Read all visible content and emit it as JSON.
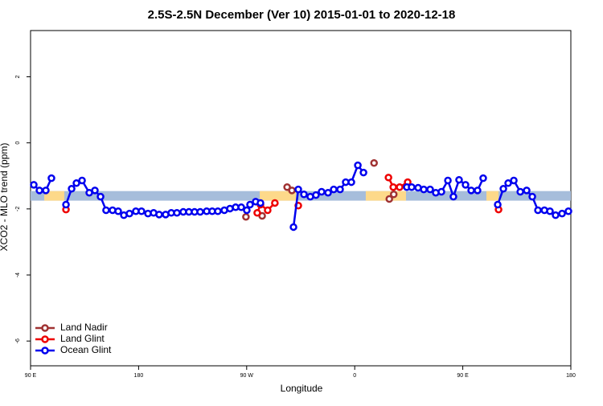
{
  "chart_data": {
    "type": "line",
    "title": "2.5S-2.5N December (Ver 10)   2015-01-01 to 2020-12-18",
    "xlabel": "Longitude",
    "ylabel": "XCO2 - MLO trend (ppm)",
    "xlim": [
      90,
      540
    ],
    "ylim": [
      -6.75,
      3.4
    ],
    "xticks": [
      {
        "value": 90,
        "label": "90 E"
      },
      {
        "value": 180,
        "label": "180"
      },
      {
        "value": 270,
        "label": "90 W"
      },
      {
        "value": 360,
        "label": "0"
      },
      {
        "value": 450,
        "label": "90 E"
      },
      {
        "value": 540,
        "label": "180"
      }
    ],
    "yticks": [
      -6,
      -4,
      -2,
      0,
      2
    ],
    "band": {
      "range": [
        -1.75,
        -1.46
      ],
      "color": "#a6bddb",
      "land_color": "#fdd98a",
      "land": [
        [
          101.4,
          118.1
        ],
        [
          280.9,
          311
        ],
        [
          369.2,
          402.7
        ],
        [
          469.7,
          479.8
        ]
      ]
    },
    "legend": "bottom-left",
    "series": [
      {
        "name": "Land Nadir",
        "color": "#a03232",
        "x": [
          269.4,
          null,
          282.9,
          null,
          303.7,
          307.7,
          null,
          376.1,
          null,
          388.8,
          392.5
        ],
        "values": [
          -2.24,
          null,
          -2.21,
          null,
          -1.34,
          -1.44,
          null,
          -0.61,
          null,
          -1.7,
          -1.56
        ]
      },
      {
        "name": "Land Glint",
        "color": "#ee0000",
        "x": [
          119.5,
          null,
          278.8,
          281.5,
          287.5,
          293.5,
          null,
          313,
          null,
          388.1,
          392.1,
          397.4,
          404.1,
          null,
          479.8
        ],
        "values": [
          -2.02,
          null,
          -2.12,
          -1.87,
          -2.04,
          -1.82,
          null,
          -1.9,
          null,
          -1.05,
          -1.34,
          -1.34,
          -1.19,
          null,
          -2.02
        ]
      },
      {
        "name": "Ocean Glint",
        "color": "#0000ee",
        "x": [
          92.7,
          97.4,
          102.7,
          107.4,
          null,
          119.5,
          124.2,
          128.2,
          132.9,
          138.9,
          143.6,
          148.3,
          152.9,
          158.3,
          163,
          167.7,
          172.4,
          177.7,
          182.4,
          187.8,
          192.5,
          197.1,
          202.5,
          207.2,
          211.9,
          217.2,
          221.9,
          226.6,
          231.3,
          236.7,
          241.3,
          246,
          251.4,
          256.1,
          260.8,
          265.5,
          270.1,
          272.8,
          277.5,
          281.5,
          null,
          309,
          313,
          317.7,
          323,
          327.7,
          332.4,
          337.8,
          342.5,
          347.8,
          352.5,
          357.2,
          362.6,
          367.3,
          null,
          403.4,
          407.4,
          412.8,
          417.5,
          422.8,
          427.5,
          432.2,
          437.6,
          442.2,
          446.9,
          452.3,
          457,
          462.3,
          467,
          null,
          479.1,
          483.8,
          487.8,
          492.5,
          497.9,
          503.2,
          507.9,
          512.6,
          518,
          522.6,
          527.3,
          532.7,
          538
        ],
        "values": [
          -1.27,
          -1.44,
          -1.44,
          -1.07,
          null,
          -1.87,
          -1.39,
          -1.22,
          -1.14,
          -1.51,
          -1.44,
          -1.63,
          -2.04,
          -2.04,
          -2.07,
          -2.19,
          -2.14,
          -2.07,
          -2.07,
          -2.14,
          -2.12,
          -2.17,
          -2.17,
          -2.12,
          -2.12,
          -2.09,
          -2.09,
          -2.09,
          -2.09,
          -2.07,
          -2.07,
          -2.07,
          -2.04,
          -1.99,
          -1.95,
          -1.95,
          -2.04,
          -1.87,
          -1.78,
          -1.82,
          null,
          -2.55,
          -1.41,
          -1.56,
          -1.63,
          -1.58,
          -1.48,
          -1.51,
          -1.41,
          -1.41,
          -1.19,
          -1.19,
          -0.68,
          -0.9,
          null,
          -1.34,
          -1.34,
          -1.36,
          -1.41,
          -1.41,
          -1.51,
          -1.48,
          -1.14,
          -1.63,
          -1.12,
          -1.27,
          -1.44,
          -1.44,
          -1.07,
          null,
          -1.87,
          -1.39,
          -1.22,
          -1.14,
          -1.48,
          -1.44,
          -1.63,
          -2.04,
          -2.04,
          -2.07,
          -2.19,
          -2.14,
          -2.07
        ]
      }
    ]
  }
}
